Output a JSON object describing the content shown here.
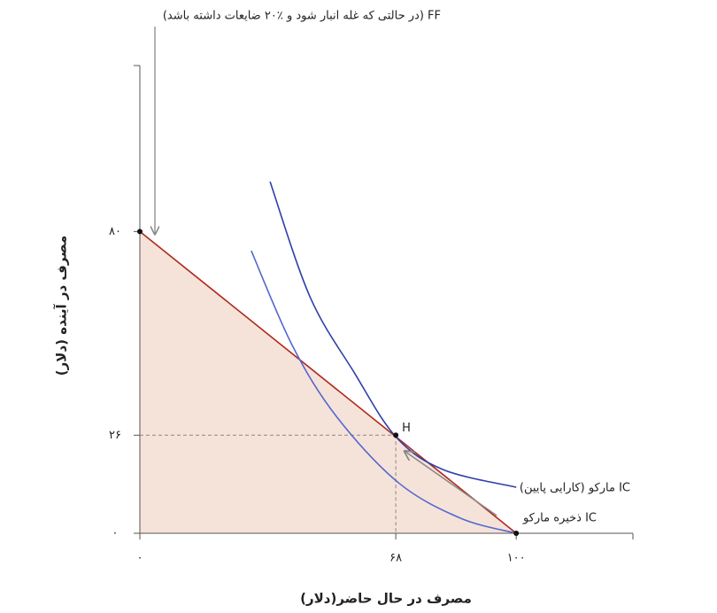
{
  "chart_data": {
    "type": "line",
    "x_label": "مصرف در حال حاضر(دلار)",
    "y_label": "مصرف در آینده (دلار)",
    "xlim": [
      0,
      131
    ],
    "ylim": [
      0,
      124
    ],
    "xticks": [
      {
        "value": 0,
        "label": "۰"
      },
      {
        "value": 68,
        "label": "۶۸"
      },
      {
        "value": 100,
        "label": "۱۰۰"
      }
    ],
    "yticks": [
      {
        "value": 0,
        "label": "۰"
      },
      {
        "value": 26,
        "label": "۲۶"
      },
      {
        "value": 80,
        "label": "۸۰"
      }
    ],
    "series": [
      {
        "name": "FF (در حالتی که غله انبار شود و ٪۲۰ ضایعات داشته باشد)",
        "color": "#b0281e",
        "fill": "#f5e3d9",
        "x": [
          0,
          100
        ],
        "values": [
          80,
          0
        ]
      },
      {
        "name": "IC مارکو (کارایی پایین)",
        "color": "#2f3fa8",
        "x": [
          34.6,
          45.2,
          56.9,
          68,
          80.5,
          100
        ],
        "values": [
          93.2,
          62.7,
          42.7,
          25.6,
          16.9,
          12.2
        ]
      },
      {
        "name": "IC ذخیره مارکو",
        "color": "#5468cf",
        "x": [
          29.6,
          40.5,
          52.2,
          68.7,
          85.2,
          100
        ],
        "values": [
          74.9,
          49.8,
          31,
          13.4,
          4,
          0
        ]
      }
    ],
    "markers": [
      {
        "x": 0,
        "y": 80
      },
      {
        "label": "H",
        "x": 68,
        "y": 26
      },
      {
        "x": 100,
        "y": 0
      }
    ]
  }
}
